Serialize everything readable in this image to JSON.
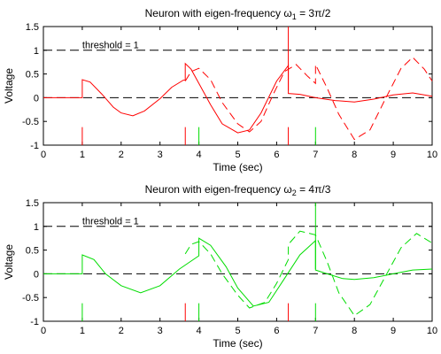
{
  "chart_data": [
    {
      "type": "line",
      "title": "Neuron with eigen-frequency ω",
      "title_sub": "1",
      "title_tail": " = 3π/2",
      "xlabel": "Time (sec)",
      "ylabel": "Voltage",
      "xlim": [
        0,
        10
      ],
      "ylim": [
        -1,
        1.5
      ],
      "xticks": [
        0,
        1,
        2,
        3,
        4,
        5,
        6,
        7,
        8,
        9,
        10
      ],
      "yticks": [
        -1,
        -0.5,
        0,
        0.5,
        1,
        1.5
      ],
      "xtick_labels": [
        "0",
        "1",
        "2",
        "3",
        "4",
        "5",
        "6",
        "7",
        "8",
        "9",
        "10"
      ],
      "ytick_labels": [
        "-1",
        "-0.5",
        "0",
        "0.5",
        "1",
        "1.5"
      ],
      "grid": false,
      "annotations": [
        {
          "text": "threshold = 1",
          "x": 1.0,
          "y": 1.08
        }
      ],
      "reference_lines": [
        {
          "y": 1,
          "style": "dashed",
          "color": "#000000"
        },
        {
          "y": 0,
          "style": "dashed",
          "color": "#000000"
        }
      ],
      "spikes": [
        {
          "x": 1.0,
          "y0": -1,
          "y1": -0.62,
          "color": "#ff0000"
        },
        {
          "x": 3.65,
          "y0": -1,
          "y1": -0.62,
          "color": "#ff0000"
        },
        {
          "x": 4.0,
          "y0": -1,
          "y1": -0.62,
          "color": "#00dd00"
        },
        {
          "x": 6.3,
          "y0": -1,
          "y1": -0.62,
          "color": "#ff0000"
        },
        {
          "x": 6.3,
          "y0": 0.15,
          "y1": 1.5,
          "color": "#ff0000"
        },
        {
          "x": 7.0,
          "y0": -1,
          "y1": -0.62,
          "color": "#00dd00"
        }
      ],
      "series": [
        {
          "style": "solid",
          "color": "#ff0000",
          "x": [
            0,
            1.0,
            1.0,
            1.2,
            1.5,
            1.8,
            2.0,
            2.3,
            2.6,
            3.0,
            3.3,
            3.6,
            3.65,
            3.65,
            3.8,
            4.0,
            4.3,
            4.6,
            5.0,
            5.3,
            5.6,
            6.0,
            6.3,
            6.3,
            6.6,
            7.0,
            7.5,
            8.0,
            8.5,
            9.0,
            9.5,
            10.0
          ],
          "y": [
            0,
            0,
            0.38,
            0.33,
            0.08,
            -0.2,
            -0.32,
            -0.38,
            -0.28,
            -0.02,
            0.22,
            0.37,
            0.37,
            0.72,
            0.6,
            0.3,
            -0.15,
            -0.55,
            -0.74,
            -0.68,
            -0.32,
            0.35,
            0.68,
            0.09,
            0.07,
            0.0,
            -0.06,
            -0.09,
            -0.03,
            0.06,
            0.1,
            0.03
          ]
        },
        {
          "style": "dashed",
          "color": "#ff0000",
          "x": [
            3.65,
            3.8,
            4.0,
            4.3,
            4.6,
            5.0,
            5.3,
            5.6,
            5.9,
            6.2,
            6.5,
            6.8,
            7.0,
            7.0,
            7.3,
            7.6,
            8.0,
            8.4,
            8.8,
            9.2,
            9.5,
            9.8,
            10.0
          ],
          "y": [
            0.35,
            0.55,
            0.62,
            0.38,
            -0.1,
            -0.55,
            -0.72,
            -0.5,
            0.05,
            0.55,
            0.7,
            0.45,
            0.3,
            0.7,
            0.2,
            -0.35,
            -0.88,
            -0.68,
            -0.02,
            0.62,
            0.85,
            0.6,
            0.35
          ]
        }
      ]
    },
    {
      "type": "line",
      "title": "Neuron with eigen-frequency ω",
      "title_sub": "2",
      "title_tail": " = 4π/3",
      "xlabel": "Time (sec)",
      "ylabel": "Voltage",
      "xlim": [
        0,
        10
      ],
      "ylim": [
        -1,
        1.5
      ],
      "xticks": [
        0,
        1,
        2,
        3,
        4,
        5,
        6,
        7,
        8,
        9,
        10
      ],
      "yticks": [
        -1,
        -0.5,
        0,
        0.5,
        1,
        1.5
      ],
      "xtick_labels": [
        "0",
        "1",
        "2",
        "3",
        "4",
        "5",
        "6",
        "7",
        "8",
        "9",
        "10"
      ],
      "ytick_labels": [
        "-1",
        "-0.5",
        "0",
        "0.5",
        "1",
        "1.5"
      ],
      "grid": false,
      "annotations": [
        {
          "text": "threshold = 1",
          "x": 1.0,
          "y": 1.08
        }
      ],
      "reference_lines": [
        {
          "y": 1,
          "style": "dashed",
          "color": "#000000"
        },
        {
          "y": 0,
          "style": "dashed",
          "color": "#000000"
        }
      ],
      "spikes": [
        {
          "x": 1.0,
          "y0": -1,
          "y1": -0.62,
          "color": "#00dd00"
        },
        {
          "x": 3.65,
          "y0": -1,
          "y1": -0.62,
          "color": "#ff0000"
        },
        {
          "x": 4.0,
          "y0": -1,
          "y1": -0.62,
          "color": "#00dd00"
        },
        {
          "x": 6.3,
          "y0": -1,
          "y1": -0.62,
          "color": "#ff0000"
        },
        {
          "x": 7.0,
          "y0": -1,
          "y1": -0.62,
          "color": "#00dd00"
        },
        {
          "x": 7.0,
          "y0": 0.1,
          "y1": 1.5,
          "color": "#00dd00"
        }
      ],
      "series": [
        {
          "style": "solid",
          "color": "#00dd00",
          "x": [
            0,
            1.0,
            1.0,
            1.3,
            1.6,
            2.0,
            2.5,
            3.0,
            3.5,
            4.0,
            4.0,
            4.3,
            4.7,
            5.0,
            5.4,
            5.8,
            6.2,
            6.6,
            7.0,
            7.0,
            7.3,
            7.7,
            8.0,
            8.5,
            9.0,
            9.5,
            10.0
          ],
          "y": [
            0,
            0,
            0.4,
            0.3,
            0.0,
            -0.25,
            -0.4,
            -0.25,
            0.1,
            0.38,
            0.75,
            0.6,
            0.15,
            -0.3,
            -0.68,
            -0.6,
            -0.1,
            0.4,
            0.7,
            0.08,
            0.0,
            -0.1,
            -0.12,
            -0.08,
            0.0,
            0.08,
            0.1
          ]
        },
        {
          "style": "dashed",
          "color": "#00dd00",
          "x": [
            3.65,
            3.8,
            4.0,
            4.3,
            4.6,
            5.0,
            5.3,
            5.7,
            6.0,
            6.3,
            6.3,
            6.6,
            7.0,
            7.3,
            7.6,
            8.0,
            8.4,
            8.8,
            9.2,
            9.6,
            10.0
          ],
          "y": [
            0.42,
            0.62,
            0.68,
            0.42,
            0.0,
            -0.45,
            -0.72,
            -0.6,
            -0.2,
            0.3,
            0.62,
            0.9,
            0.82,
            0.25,
            -0.4,
            -0.88,
            -0.65,
            -0.05,
            0.55,
            0.85,
            0.65
          ]
        }
      ]
    }
  ]
}
